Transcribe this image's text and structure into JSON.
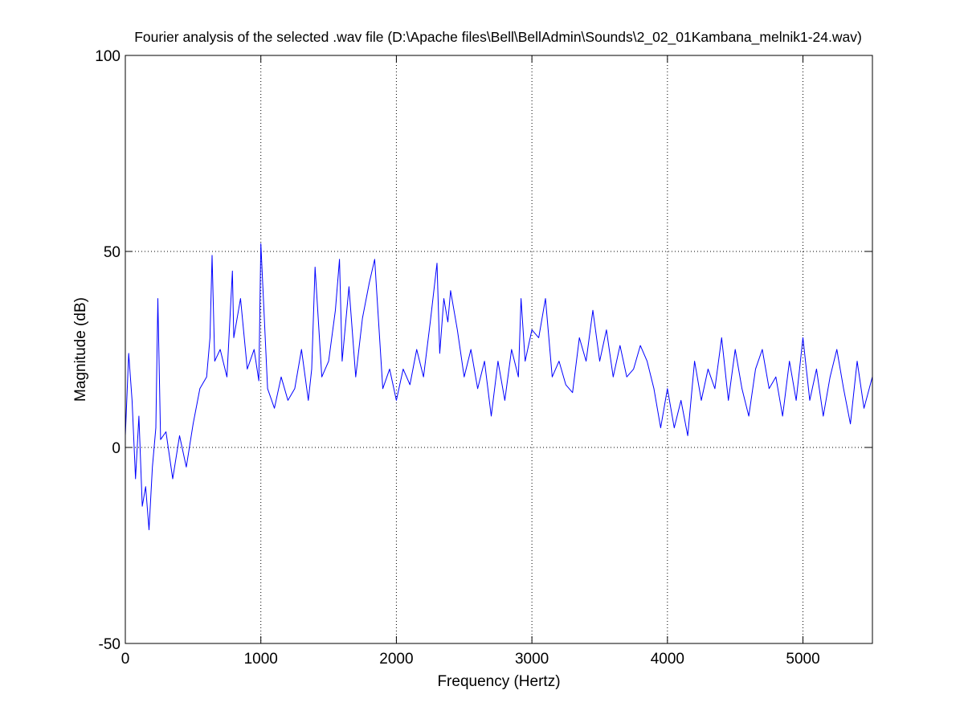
{
  "chart_data": {
    "type": "line",
    "title": "Fourier analysis of the selected .wav file (D:\\Apache files\\Bell\\BellAdmin\\Sounds\\2_02_01Kambana_melnik1-24.wav)",
    "xlabel": "Frequency (Hertz)",
    "ylabel": "Magnitude (dB)",
    "xlim": [
      0,
      5512.5
    ],
    "ylim": [
      -50,
      100
    ],
    "xticks": [
      0,
      1000,
      2000,
      3000,
      4000,
      5000
    ],
    "xtick_labels": [
      "0",
      "1000",
      "2000",
      "3000",
      "4000",
      "5000"
    ],
    "yticks": [
      -50,
      0,
      50,
      100
    ],
    "ytick_labels": [
      "-50",
      "0",
      "50",
      "100"
    ],
    "grid": true,
    "legend": "none",
    "series": [
      {
        "color": "#0000ff",
        "x": [
          0,
          25,
          50,
          75,
          100,
          125,
          150,
          175,
          200,
          225,
          240,
          260,
          300,
          350,
          400,
          450,
          500,
          550,
          600,
          625,
          640,
          660,
          700,
          750,
          790,
          800,
          850,
          900,
          950,
          985,
          1000,
          1050,
          1100,
          1150,
          1200,
          1250,
          1300,
          1350,
          1375,
          1400,
          1450,
          1500,
          1550,
          1580,
          1600,
          1650,
          1700,
          1750,
          1800,
          1840,
          1900,
          1950,
          2000,
          2050,
          2100,
          2150,
          2200,
          2250,
          2300,
          2320,
          2350,
          2380,
          2400,
          2450,
          2500,
          2550,
          2600,
          2650,
          2700,
          2750,
          2800,
          2850,
          2900,
          2920,
          2950,
          3000,
          3050,
          3100,
          3150,
          3200,
          3250,
          3300,
          3350,
          3400,
          3450,
          3500,
          3550,
          3600,
          3650,
          3700,
          3750,
          3800,
          3850,
          3900,
          3950,
          4000,
          4050,
          4100,
          4150,
          4200,
          4250,
          4300,
          4350,
          4400,
          4450,
          4500,
          4550,
          4600,
          4650,
          4700,
          4750,
          4800,
          4850,
          4900,
          4950,
          5000,
          5050,
          5100,
          5150,
          5200,
          5250,
          5300,
          5350,
          5400,
          5450,
          5512
        ],
        "y": [
          3,
          24,
          12,
          -8,
          8,
          -15,
          -10,
          -21,
          -5,
          5,
          38,
          2,
          4,
          -8,
          3,
          -5,
          6,
          15,
          18,
          28,
          49,
          22,
          25,
          18,
          45,
          28,
          38,
          20,
          25,
          17,
          52,
          15,
          10,
          18,
          12,
          15,
          25,
          12,
          20,
          46,
          18,
          22,
          35,
          48,
          22,
          41,
          18,
          33,
          42,
          48,
          15,
          20,
          12,
          20,
          16,
          25,
          18,
          32,
          47,
          24,
          38,
          32,
          40,
          30,
          18,
          25,
          15,
          22,
          8,
          22,
          12,
          25,
          18,
          38,
          22,
          30,
          28,
          38,
          18,
          22,
          16,
          14,
          28,
          22,
          35,
          22,
          30,
          18,
          26,
          18,
          20,
          26,
          22,
          15,
          5,
          15,
          5,
          12,
          3,
          22,
          12,
          20,
          15,
          28,
          12,
          25,
          15,
          8,
          20,
          25,
          15,
          18,
          8,
          22,
          12,
          28,
          12,
          20,
          8,
          18,
          25,
          15,
          6,
          22,
          10,
          18
        ]
      }
    ]
  }
}
